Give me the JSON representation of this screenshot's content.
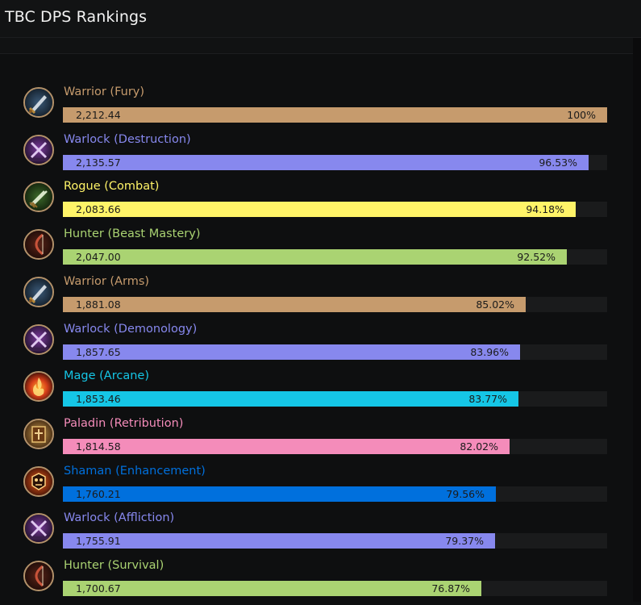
{
  "page": {
    "title": "TBC DPS Rankings"
  },
  "rankings": [
    {
      "name": "Warrior (Fury)",
      "value": "2,212.44",
      "percent": "100%",
      "fraction": 1.0,
      "color": "#c69b6d",
      "icon": "warrior-sword-icon"
    },
    {
      "name": "Warlock (Destruction)",
      "value": "2,135.57",
      "percent": "96.53%",
      "fraction": 0.9653,
      "color": "#8788ee",
      "icon": "warlock-crossed-icon"
    },
    {
      "name": "Rogue (Combat)",
      "value": "2,083.66",
      "percent": "94.18%",
      "fraction": 0.9418,
      "color": "#fff468",
      "icon": "rogue-daggers-icon"
    },
    {
      "name": "Hunter (Beast Mastery)",
      "value": "2,047.00",
      "percent": "92.52%",
      "fraction": 0.9252,
      "color": "#aad372",
      "icon": "hunter-bow-icon"
    },
    {
      "name": "Warrior (Arms)",
      "value": "1,881.08",
      "percent": "85.02%",
      "fraction": 0.8502,
      "color": "#c69b6d",
      "icon": "warrior-sword-icon"
    },
    {
      "name": "Warlock (Demonology)",
      "value": "1,857.65",
      "percent": "83.96%",
      "fraction": 0.8396,
      "color": "#8788ee",
      "icon": "warlock-crossed-icon"
    },
    {
      "name": "Mage (Arcane)",
      "value": "1,853.46",
      "percent": "83.77%",
      "fraction": 0.8377,
      "color": "#15c6e6",
      "icon": "mage-fire-icon"
    },
    {
      "name": "Paladin (Retribution)",
      "value": "1,814.58",
      "percent": "82.02%",
      "fraction": 0.8202,
      "color": "#f48cba",
      "icon": "paladin-tome-icon"
    },
    {
      "name": "Shaman (Enhancement)",
      "value": "1,760.21",
      "percent": "79.56%",
      "fraction": 0.7956,
      "color": "#0070dd",
      "icon": "shaman-totem-icon"
    },
    {
      "name": "Warlock (Affliction)",
      "value": "1,755.91",
      "percent": "79.37%",
      "fraction": 0.7937,
      "color": "#8788ee",
      "icon": "warlock-crossed-icon"
    },
    {
      "name": "Hunter (Survival)",
      "value": "1,700.67",
      "percent": "76.87%",
      "fraction": 0.7687,
      "color": "#aad372",
      "icon": "hunter-bow-icon"
    }
  ]
}
